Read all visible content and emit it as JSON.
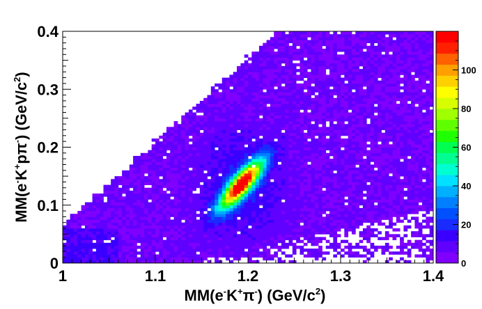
{
  "chart_data": {
    "type": "heatmap",
    "title": "",
    "xlabel": {
      "parts": [
        {
          "t": "MM(e",
          "s": ""
        },
        {
          "t": "-",
          "s": "sup"
        },
        {
          "t": "K",
          "s": ""
        },
        {
          "t": "+",
          "s": "sup"
        },
        {
          "t": "π",
          "s": ""
        },
        {
          "t": "-",
          "s": "sup"
        },
        {
          "t": ") (GeV/c",
          "s": ""
        },
        {
          "t": "2",
          "s": "sup"
        },
        {
          "t": ")",
          "s": ""
        }
      ]
    },
    "ylabel": {
      "parts": [
        {
          "t": "MM(e",
          "s": ""
        },
        {
          "t": "-",
          "s": "sup"
        },
        {
          "t": "K",
          "s": ""
        },
        {
          "t": "+",
          "s": "sup"
        },
        {
          "t": "pπ",
          "s": ""
        },
        {
          "t": "-",
          "s": "sup"
        },
        {
          "t": ") (GeV/c",
          "s": ""
        },
        {
          "t": "2",
          "s": "sup"
        },
        {
          "t": ")",
          "s": ""
        }
      ]
    },
    "xlim": [
      1.0,
      1.4
    ],
    "ylim": [
      0.0,
      0.4
    ],
    "zlim": [
      0,
      120
    ],
    "x_ticks": [
      "1",
      "1.1",
      "1.2",
      "1.3",
      "1.4"
    ],
    "y_ticks": [
      "0",
      "0.1",
      "0.2",
      "0.3",
      "0.4"
    ],
    "z_ticks": [
      "0",
      "20",
      "40",
      "60",
      "80",
      "100"
    ],
    "bins": {
      "nx": 100,
      "ny": 80
    },
    "peak": {
      "x": 1.193,
      "y": 0.136,
      "max_count": 118
    },
    "boundary": {
      "upper_edge_y_at_x_1.0": 0.065,
      "upper_edge_slope": 1.45
    },
    "palette": [
      "#8000ff",
      "#6000ff",
      "#3a00ff",
      "#1a2bff",
      "#0050ff",
      "#0080ff",
      "#00b0ff",
      "#00e0ff",
      "#00ffd0",
      "#00ff90",
      "#00ff50",
      "#20ff00",
      "#60ff00",
      "#a0ff00",
      "#d8ff00",
      "#ffff00",
      "#ffd000",
      "#ff9f00",
      "#ff6000",
      "#ff2000",
      "#ff0000"
    ],
    "grid": false,
    "legend": "colorbar-right"
  }
}
